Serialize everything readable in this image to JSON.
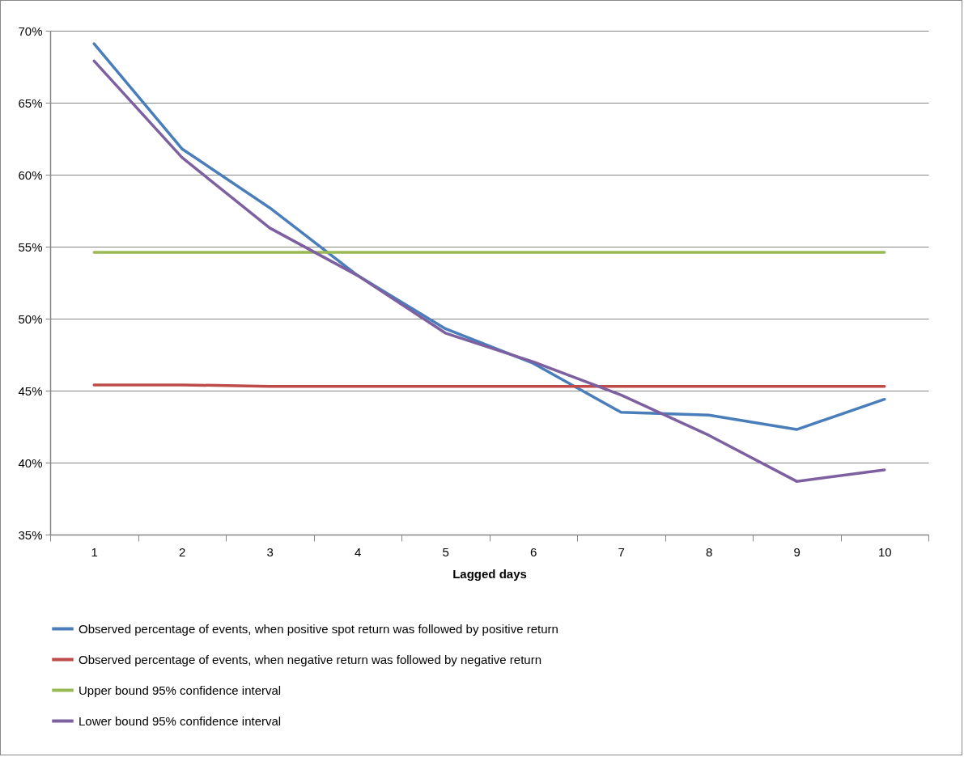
{
  "chart_data": {
    "type": "line",
    "xlabel": "Lagged days",
    "categories": [
      "1",
      "2",
      "3",
      "4",
      "5",
      "6",
      "7",
      "8",
      "9",
      "10"
    ],
    "series": [
      {
        "name": "Observed percentage of events, when positive spot return was followed by positive return",
        "color": "#4a7ebb",
        "values": [
          69.1,
          61.8,
          57.7,
          53.0,
          49.3,
          46.9,
          43.5,
          43.3,
          42.3,
          44.4
        ]
      },
      {
        "name": "Observed percentage of events, when negative return was followed by negative return",
        "color": "#be4b48",
        "values": [
          45.4,
          45.4,
          45.3,
          45.3,
          45.3,
          45.3,
          45.3,
          45.3,
          45.3,
          45.3
        ]
      },
      {
        "name": "Upper bound 95% confidence interval",
        "color": "#98b954",
        "values": [
          54.6,
          54.6,
          54.6,
          54.6,
          54.6,
          54.6,
          54.6,
          54.6,
          54.6,
          54.6
        ]
      },
      {
        "name": "Lower bound 95% confidence interval",
        "color": "#7d60a0",
        "values": [
          67.9,
          61.2,
          56.3,
          53.0,
          49.0,
          47.0,
          44.7,
          41.9,
          38.7,
          39.5
        ]
      }
    ],
    "ylim": [
      35,
      70
    ],
    "yticks": [
      {
        "value": 35,
        "label": "35%"
      },
      {
        "value": 40,
        "label": "40%"
      },
      {
        "value": 45,
        "label": "45%"
      },
      {
        "value": 50,
        "label": "50%"
      },
      {
        "value": 55,
        "label": "55%"
      },
      {
        "value": 60,
        "label": "60%"
      },
      {
        "value": 65,
        "label": "65%"
      },
      {
        "value": 70,
        "label": "70%"
      }
    ],
    "grid": "y",
    "legend": "bottom",
    "marker": "none",
    "line_style": "solid"
  }
}
